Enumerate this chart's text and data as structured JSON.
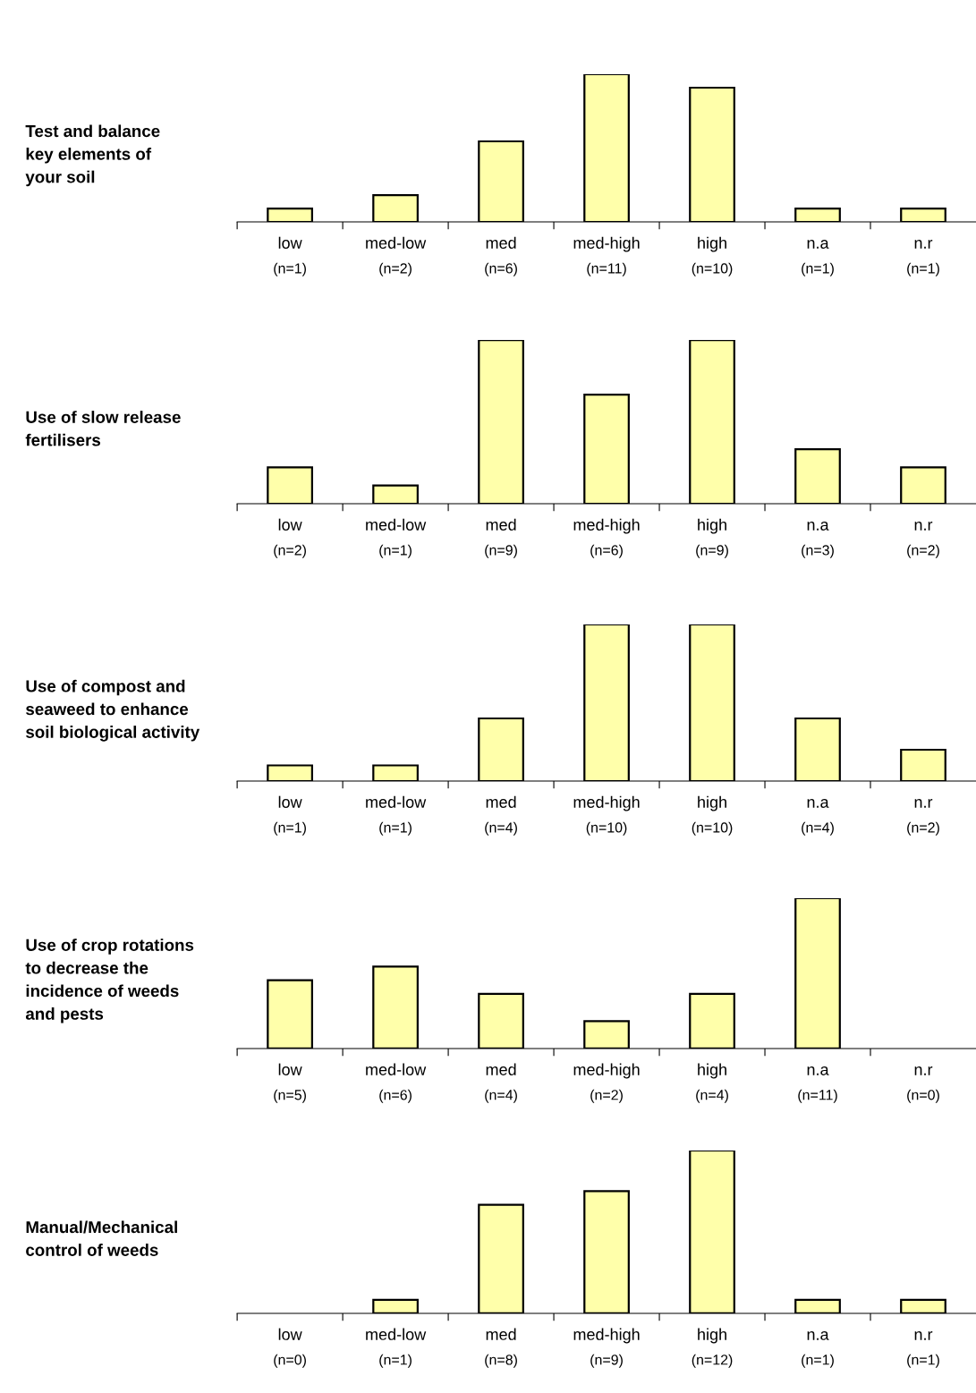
{
  "chart_data": [
    {
      "type": "bar",
      "title": "Test and balance\nkey elements of\nyour soil",
      "categories": [
        "low",
        "med-low",
        "med",
        "med-high",
        "high",
        "n.a",
        "n.r"
      ],
      "values": [
        1,
        2,
        6,
        11,
        10,
        1,
        1
      ],
      "value_labels": [
        "(n=1)",
        "(n=2)",
        "(n=6)",
        "(n=11)",
        "(n=10)",
        "(n=1)",
        "(n=1)"
      ],
      "color": "#ffffaa"
    },
    {
      "type": "bar",
      "title": "Use of slow release\nfertilisers",
      "categories": [
        "low",
        "med-low",
        "med",
        "med-high",
        "high",
        "n.a",
        "n.r"
      ],
      "values": [
        2,
        1,
        9,
        6,
        9,
        3,
        2
      ],
      "value_labels": [
        "(n=2)",
        "(n=1)",
        "(n=9)",
        "(n=6)",
        "(n=9)",
        "(n=3)",
        "(n=2)"
      ],
      "color": "#ffffaa"
    },
    {
      "type": "bar",
      "title": "Use of compost and\nseaweed to enhance\nsoil biological activity",
      "categories": [
        "low",
        "med-low",
        "med",
        "med-high",
        "high",
        "n.a",
        "n.r"
      ],
      "values": [
        1,
        1,
        4,
        10,
        10,
        4,
        2
      ],
      "value_labels": [
        "(n=1)",
        "(n=1)",
        "(n=4)",
        "(n=10)",
        "(n=10)",
        "(n=4)",
        "(n=2)"
      ],
      "color": "#ffffaa"
    },
    {
      "type": "bar",
      "title": "Use of crop rotations\nto decrease the\nincidence of weeds\nand pests",
      "categories": [
        "low",
        "med-low",
        "med",
        "med-high",
        "high",
        "n.a",
        "n.r"
      ],
      "values": [
        5,
        6,
        4,
        2,
        4,
        11,
        0
      ],
      "value_labels": [
        "(n=5)",
        "(n=6)",
        "(n=4)",
        "(n=2)",
        "(n=4)",
        "(n=11)",
        "(n=0)"
      ],
      "color": "#ffffaa"
    },
    {
      "type": "bar",
      "title": "Manual/Mechanical\ncontrol of weeds",
      "categories": [
        "low",
        "med-low",
        "med",
        "med-high",
        "high",
        "n.a",
        "n.r"
      ],
      "values": [
        0,
        1,
        8,
        9,
        12,
        1,
        1
      ],
      "value_labels": [
        "(n=0)",
        "(n=1)",
        "(n=8)",
        "(n=9)",
        "(n=12)",
        "(n=1)",
        "(n=1)"
      ],
      "color": "#ffffaa"
    }
  ]
}
